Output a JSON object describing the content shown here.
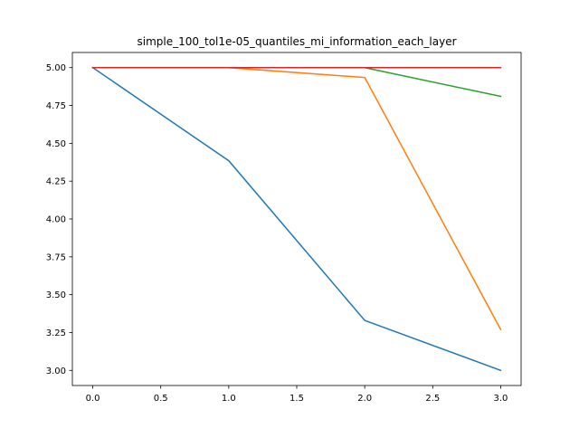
{
  "chart_data": {
    "type": "line",
    "title": "simple_100_tol1e-05_quantiles_mi_information_each_layer",
    "xlabel": "",
    "ylabel": "",
    "x": [
      0,
      1,
      2,
      3
    ],
    "xlim": [
      -0.15,
      3.15
    ],
    "ylim": [
      2.9,
      5.1
    ],
    "xticks": [
      0,
      0.5,
      1,
      1.5,
      2,
      2.5,
      3
    ],
    "xtick_labels": [
      "0.0",
      "0.5",
      "1.0",
      "1.5",
      "2.0",
      "2.5",
      "3.0"
    ],
    "yticks": [
      3.0,
      3.25,
      3.5,
      3.75,
      4.0,
      4.25,
      4.5,
      4.75,
      5.0
    ],
    "ytick_labels": [
      "3.00",
      "3.25",
      "3.50",
      "3.75",
      "4.00",
      "4.25",
      "4.50",
      "4.75",
      "5.00"
    ],
    "grid": false,
    "legend": false,
    "series": [
      {
        "color": "#1f77b4",
        "values": [
          5.0,
          4.385,
          3.33,
          3.0
        ]
      },
      {
        "color": "#ff7f0e",
        "values": [
          5.0,
          5.0,
          4.935,
          3.27
        ]
      },
      {
        "color": "#2ca02c",
        "values": [
          5.0,
          5.0,
          5.0,
          4.81
        ]
      },
      {
        "color": "#d62728",
        "values": [
          5.0,
          5.0,
          5.0,
          5.0
        ]
      }
    ]
  }
}
